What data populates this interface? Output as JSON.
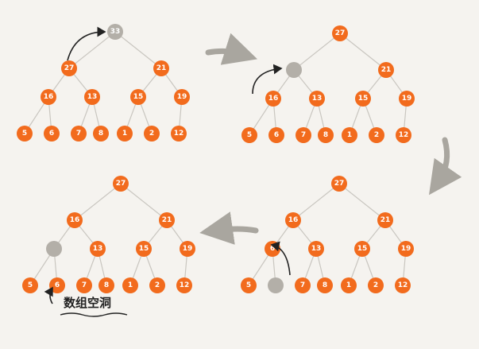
{
  "colors": {
    "background": "#f5f3ef",
    "node": "#f26b1d",
    "hole": "#b3afa8",
    "edge": "#c9c6c0",
    "arrow": "#222222",
    "transition_arrow": "#a9a69f"
  },
  "icons": [
    "curved-arrow-icon",
    "transition-arrow-icon"
  ],
  "panels": [
    {
      "name": "panel-1",
      "nodes": [
        "33",
        "27",
        "21",
        "16",
        "13",
        "15",
        "19",
        "5",
        "6",
        "7",
        "8",
        "1",
        "2",
        "12"
      ],
      "hole_index": -1,
      "gray_index": 0
    },
    {
      "name": "panel-2",
      "nodes": [
        "27",
        "",
        "21",
        "16",
        "13",
        "15",
        "19",
        "5",
        "6",
        "7",
        "8",
        "1",
        "2",
        "12"
      ],
      "hole_index": 1,
      "gray_index": -1
    },
    {
      "name": "panel-3",
      "nodes": [
        "27",
        "16",
        "21",
        "",
        "13",
        "15",
        "19",
        "5",
        "6",
        "7",
        "8",
        "1",
        "2",
        "12"
      ],
      "hole_index": 3,
      "gray_index": -1
    },
    {
      "name": "panel-4",
      "nodes": [
        "27",
        "16",
        "21",
        "6",
        "13",
        "15",
        "19",
        "5",
        "",
        "7",
        "8",
        "1",
        "2",
        "12"
      ],
      "hole_index": 8,
      "gray_index": -1
    }
  ],
  "caption": "数组空洞"
}
